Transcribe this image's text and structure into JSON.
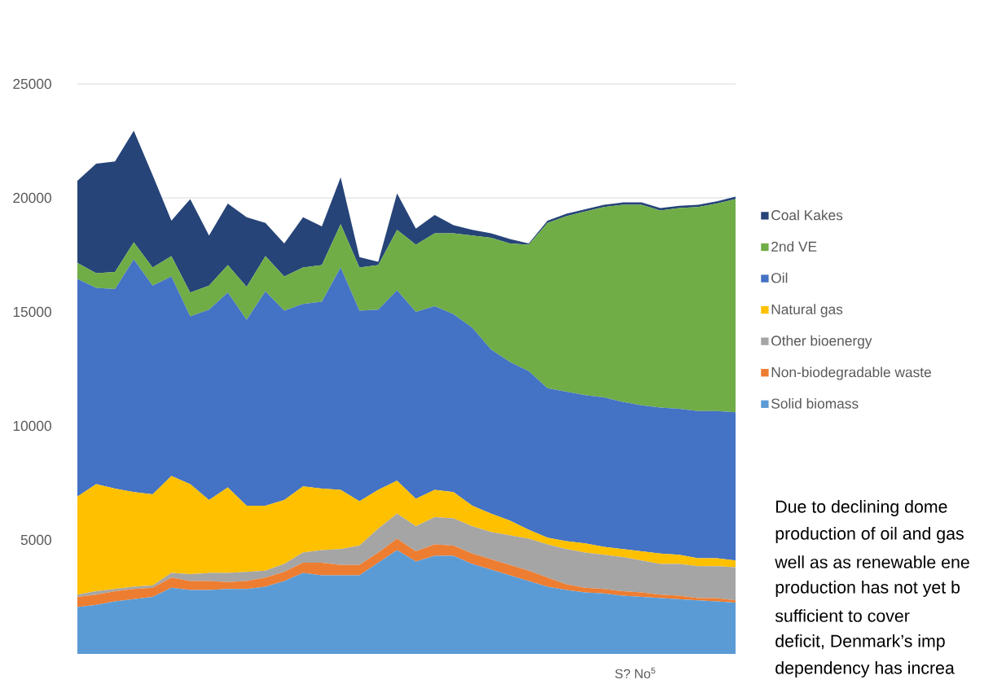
{
  "chart_data": {
    "type": "area",
    "stacked": true,
    "categories": [
      null,
      null,
      null,
      null,
      null,
      null,
      null,
      null,
      null,
      null,
      null,
      null,
      null,
      null,
      null,
      null,
      null,
      null,
      null,
      null,
      null,
      null,
      null,
      null,
      null,
      null,
      null,
      null,
      null,
      null,
      null,
      null,
      null,
      null,
      null,
      null
    ],
    "ylim": [
      0,
      25000
    ],
    "yticks": [
      5000,
      10000,
      15000,
      20000,
      25000
    ],
    "grid": "y",
    "legend": "right",
    "annotations": [
      "S? No$^{5}$",
      "Due to declining dome",
      "production of oil and gas",
      "well as as renewable ene",
      "production has not yet b",
      "sufficient to cover",
      "deficit, Denmark’s imp",
      "dependency has increa"
    ],
    "series": [
      {
        "name": "Solid biomass",
        "color": "#5b9bd5",
        "values": [
          2050,
          2150,
          2300,
          2400,
          2500,
          2900,
          2800,
          2800,
          2850,
          2850,
          2950,
          3200,
          3550,
          3450,
          3450,
          3450,
          4000,
          4550,
          4050,
          4300,
          4300,
          3950,
          3700,
          3450,
          3200,
          2950,
          2800,
          2700,
          2650,
          2550,
          2500,
          2450,
          2400,
          2350,
          2300,
          2250
        ]
      },
      {
        "name": "Non-biodegradable waste",
        "color": "#ed7d31",
        "values": [
          450,
          450,
          450,
          450,
          400,
          450,
          400,
          400,
          300,
          350,
          400,
          400,
          450,
          550,
          450,
          450,
          450,
          500,
          450,
          500,
          450,
          450,
          450,
          450,
          450,
          400,
          250,
          200,
          200,
          200,
          200,
          150,
          150,
          100,
          150,
          100
        ]
      },
      {
        "name": "Other bioenergy",
        "color": "#a5a5a5",
        "values": [
          100,
          150,
          100,
          100,
          100,
          200,
          300,
          350,
          400,
          400,
          300,
          350,
          450,
          550,
          700,
          850,
          1050,
          1100,
          1100,
          1200,
          1200,
          1200,
          1200,
          1300,
          1400,
          1450,
          1550,
          1550,
          1500,
          1500,
          1400,
          1350,
          1400,
          1400,
          1400,
          1450
        ]
      },
      {
        "name": "Natural gas",
        "color": "#ffc000",
        "values": [
          4300,
          4700,
          4400,
          4150,
          4000,
          4250,
          3950,
          3200,
          3750,
          2900,
          2850,
          2800,
          2900,
          2700,
          2600,
          1950,
          1700,
          1450,
          1200,
          1200,
          1150,
          900,
          800,
          650,
          400,
          300,
          350,
          400,
          350,
          350,
          400,
          450,
          400,
          350,
          350,
          300
        ]
      },
      {
        "name": "Oil",
        "color": "#4472c4",
        "values": [
          9550,
          8600,
          8750,
          10200,
          9150,
          8750,
          7350,
          8350,
          8550,
          8150,
          9400,
          8300,
          8000,
          8200,
          9750,
          8350,
          7900,
          8350,
          8200,
          8050,
          7800,
          7800,
          7200,
          6950,
          6950,
          6550,
          6550,
          6500,
          6550,
          6450,
          6400,
          6400,
          6400,
          6450,
          6450,
          6500
        ]
      },
      {
        "name": "2nd VE",
        "color": "#70ad47",
        "values": [
          700,
          650,
          750,
          750,
          800,
          900,
          1050,
          1050,
          1200,
          1450,
          1550,
          1500,
          1600,
          1600,
          1900,
          1900,
          1950,
          2650,
          2950,
          3200,
          3550,
          4050,
          4900,
          5200,
          5550,
          7250,
          7700,
          8050,
          8350,
          8650,
          8800,
          8650,
          8800,
          8950,
          9100,
          9350
        ]
      },
      {
        "name": "Coal Kakes",
        "color": "#264478",
        "values": [
          3600,
          4800,
          4850,
          4900,
          4050,
          1550,
          4100,
          2200,
          2700,
          3050,
          1450,
          1450,
          2200,
          1700,
          2050,
          450,
          150,
          1600,
          700,
          800,
          350,
          250,
          200,
          200,
          50,
          100,
          100,
          100,
          100,
          100,
          100,
          100,
          100,
          100,
          100,
          100
        ]
      }
    ]
  }
}
